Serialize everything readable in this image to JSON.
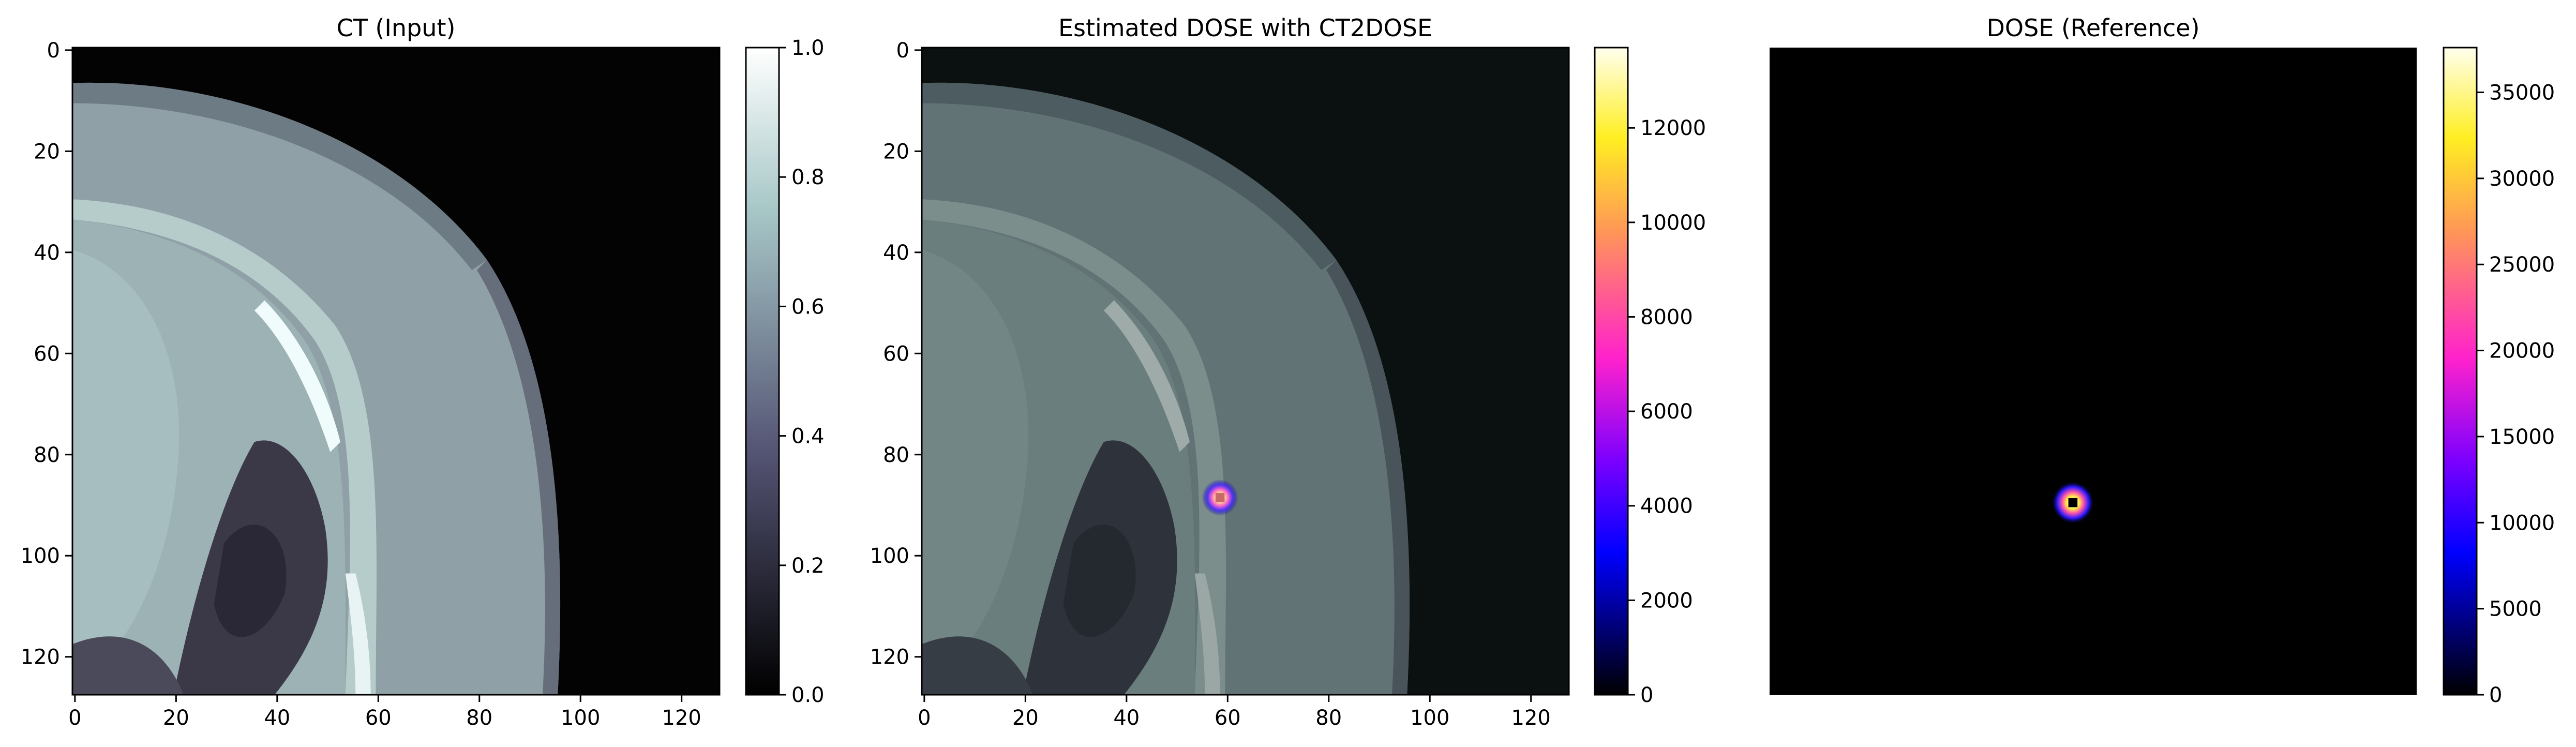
{
  "chart_data": [
    {
      "type": "heatmap",
      "title": "CT (Input)",
      "xlim": [
        0,
        128
      ],
      "ylim": [
        128,
        0
      ],
      "xticks": [
        0,
        20,
        40,
        60,
        80,
        100,
        120
      ],
      "yticks": [
        0,
        20,
        40,
        60,
        80,
        100,
        120
      ],
      "colormap": "bone",
      "colorbar": {
        "min": 0.0,
        "max": 1.0,
        "ticks": [
          "0.0",
          "0.2",
          "0.4",
          "0.6",
          "0.8",
          "1.0"
        ]
      }
    },
    {
      "type": "heatmap",
      "title": "Estimated DOSE with CT2DOSE",
      "xlim": [
        0,
        128
      ],
      "ylim": [
        128,
        0
      ],
      "xticks": [
        0,
        20,
        40,
        60,
        80,
        100,
        120
      ],
      "yticks": [
        0,
        20,
        40,
        60,
        80,
        100,
        120
      ],
      "colormap": "gnuplot2",
      "hotspot": {
        "x": 59,
        "y": 89
      },
      "colorbar": {
        "min": 0,
        "max": 13700,
        "ticks": [
          "0",
          "2000",
          "4000",
          "6000",
          "8000",
          "10000",
          "12000"
        ]
      }
    },
    {
      "type": "heatmap",
      "title": "DOSE (Reference)",
      "xlim": [
        0,
        128
      ],
      "ylim": [
        128,
        0
      ],
      "axes_visible": false,
      "colormap": "gnuplot2",
      "hotspot": {
        "x": 60,
        "y": 90
      },
      "colorbar": {
        "min": 0,
        "max": 37600,
        "ticks": [
          "0",
          "5000",
          "10000",
          "15000",
          "20000",
          "25000",
          "30000",
          "35000"
        ]
      }
    }
  ]
}
